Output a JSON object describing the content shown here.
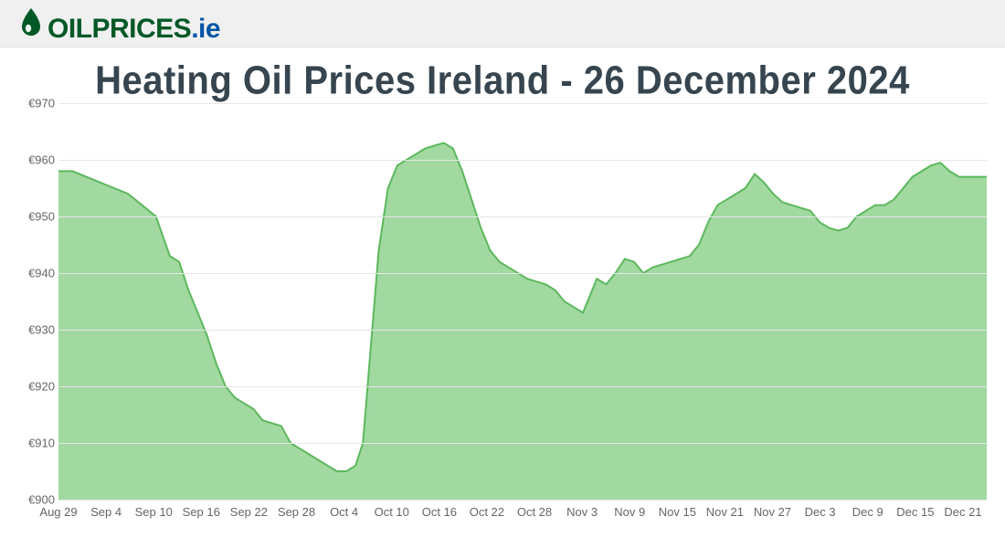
{
  "logo": {
    "word1": "OILPRICES",
    "word2": ".ie",
    "color1": "#005826",
    "color2": "#0055a5"
  },
  "chart": {
    "type": "area",
    "title": "Heating Oil Prices Ireland - 26 December 2024",
    "title_color": "#36454f",
    "title_fontsize": 38,
    "background_color": "#ffffff",
    "grid_color": "#e6e6e6",
    "axis_text_color": "#666666",
    "axis_fontsize": 13,
    "ylim": [
      900,
      970
    ],
    "ytick_step": 10,
    "y_prefix": "€",
    "y_ticks": [
      900,
      910,
      920,
      930,
      940,
      950,
      960,
      970
    ],
    "x_ticks": [
      "Aug 29",
      "Sep 4",
      "Sep 10",
      "Sep 16",
      "Sep 22",
      "Sep 28",
      "Oct 4",
      "Oct 10",
      "Oct 16",
      "Oct 22",
      "Oct 28",
      "Nov 3",
      "Nov 9",
      "Nov 15",
      "Nov 21",
      "Nov 27",
      "Dec 3",
      "Dec 9",
      "Dec 15",
      "Dec 21"
    ],
    "x_tick_positions": [
      0,
      5.13,
      10.26,
      15.38,
      20.51,
      25.64,
      30.77,
      35.9,
      41.03,
      46.15,
      51.28,
      56.41,
      61.54,
      66.67,
      71.79,
      76.92,
      82.05,
      87.18,
      92.31,
      97.44
    ],
    "line_color": "#5cb85c",
    "line_width": 2,
    "fill_color": "#86ce86",
    "fill_opacity": 0.78,
    "data": [
      {
        "x": 0,
        "y": 958
      },
      {
        "x": 1.5,
        "y": 958
      },
      {
        "x": 3,
        "y": 957
      },
      {
        "x": 4.5,
        "y": 956
      },
      {
        "x": 6,
        "y": 955
      },
      {
        "x": 7.5,
        "y": 954
      },
      {
        "x": 9,
        "y": 952
      },
      {
        "x": 10.5,
        "y": 950
      },
      {
        "x": 12,
        "y": 943
      },
      {
        "x": 13,
        "y": 942
      },
      {
        "x": 14,
        "y": 937
      },
      {
        "x": 15,
        "y": 933
      },
      {
        "x": 16,
        "y": 929
      },
      {
        "x": 17,
        "y": 924
      },
      {
        "x": 18,
        "y": 920
      },
      {
        "x": 19,
        "y": 918
      },
      {
        "x": 20,
        "y": 917
      },
      {
        "x": 21,
        "y": 916
      },
      {
        "x": 22,
        "y": 914
      },
      {
        "x": 23,
        "y": 913.5
      },
      {
        "x": 24,
        "y": 913
      },
      {
        "x": 25,
        "y": 910
      },
      {
        "x": 26,
        "y": 909
      },
      {
        "x": 27,
        "y": 908
      },
      {
        "x": 28,
        "y": 907
      },
      {
        "x": 29,
        "y": 906
      },
      {
        "x": 30,
        "y": 905
      },
      {
        "x": 31,
        "y": 905
      },
      {
        "x": 32,
        "y": 906
      },
      {
        "x": 32.8,
        "y": 910
      },
      {
        "x": 33.8,
        "y": 930
      },
      {
        "x": 34.5,
        "y": 944
      },
      {
        "x": 35.5,
        "y": 955
      },
      {
        "x": 36.5,
        "y": 959
      },
      {
        "x": 37.5,
        "y": 960
      },
      {
        "x": 38.5,
        "y": 961
      },
      {
        "x": 39.5,
        "y": 962
      },
      {
        "x": 40.5,
        "y": 962.5
      },
      {
        "x": 41.5,
        "y": 963
      },
      {
        "x": 42.5,
        "y": 962
      },
      {
        "x": 43.5,
        "y": 958
      },
      {
        "x": 44.5,
        "y": 953
      },
      {
        "x": 45.5,
        "y": 948
      },
      {
        "x": 46.5,
        "y": 944
      },
      {
        "x": 47.5,
        "y": 942
      },
      {
        "x": 48.5,
        "y": 941
      },
      {
        "x": 49.5,
        "y": 940
      },
      {
        "x": 50.5,
        "y": 939
      },
      {
        "x": 51.5,
        "y": 938.5
      },
      {
        "x": 52.5,
        "y": 938
      },
      {
        "x": 53.5,
        "y": 937
      },
      {
        "x": 54.5,
        "y": 935
      },
      {
        "x": 55.5,
        "y": 934
      },
      {
        "x": 56.5,
        "y": 933
      },
      {
        "x": 57,
        "y": 935
      },
      {
        "x": 58,
        "y": 939
      },
      {
        "x": 59,
        "y": 938
      },
      {
        "x": 60,
        "y": 940
      },
      {
        "x": 61,
        "y": 942.5
      },
      {
        "x": 62,
        "y": 942
      },
      {
        "x": 63,
        "y": 940
      },
      {
        "x": 64,
        "y": 941
      },
      {
        "x": 65,
        "y": 941.5
      },
      {
        "x": 66,
        "y": 942
      },
      {
        "x": 67,
        "y": 942.5
      },
      {
        "x": 68,
        "y": 943
      },
      {
        "x": 69,
        "y": 945
      },
      {
        "x": 70,
        "y": 949
      },
      {
        "x": 71,
        "y": 952
      },
      {
        "x": 72,
        "y": 953
      },
      {
        "x": 73,
        "y": 954
      },
      {
        "x": 74,
        "y": 955
      },
      {
        "x": 75,
        "y": 957.5
      },
      {
        "x": 76,
        "y": 956
      },
      {
        "x": 77,
        "y": 954
      },
      {
        "x": 78,
        "y": 952.5
      },
      {
        "x": 79,
        "y": 952
      },
      {
        "x": 80,
        "y": 951.5
      },
      {
        "x": 81,
        "y": 951
      },
      {
        "x": 82,
        "y": 949
      },
      {
        "x": 83,
        "y": 948
      },
      {
        "x": 84,
        "y": 947.5
      },
      {
        "x": 85,
        "y": 948
      },
      {
        "x": 86,
        "y": 950
      },
      {
        "x": 87,
        "y": 951
      },
      {
        "x": 88,
        "y": 952
      },
      {
        "x": 89,
        "y": 952
      },
      {
        "x": 90,
        "y": 953
      },
      {
        "x": 91,
        "y": 955
      },
      {
        "x": 92,
        "y": 957
      },
      {
        "x": 93,
        "y": 958
      },
      {
        "x": 94,
        "y": 959
      },
      {
        "x": 95,
        "y": 959.5
      },
      {
        "x": 96,
        "y": 958
      },
      {
        "x": 97,
        "y": 957
      },
      {
        "x": 98,
        "y": 957
      },
      {
        "x": 99,
        "y": 957
      },
      {
        "x": 100,
        "y": 957
      }
    ]
  }
}
